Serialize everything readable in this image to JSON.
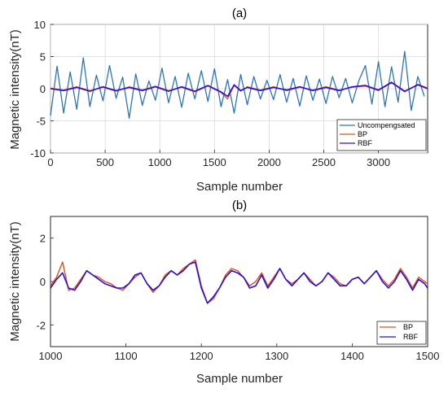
{
  "chart_data": [
    {
      "type": "line",
      "title": "(a)",
      "xlabel": "Sample number",
      "ylabel": "Magnetic intensity(nT)",
      "xlim": [
        0,
        3450
      ],
      "ylim": [
        -10,
        10
      ],
      "xticks": [
        0,
        500,
        1000,
        1500,
        2000,
        2500,
        3000
      ],
      "yticks": [
        10,
        5,
        0,
        -5,
        -10
      ],
      "grid": true,
      "legend_position": "bottom-right",
      "series": [
        {
          "name": "Uncompengsated",
          "color": "#2e75b6",
          "x": [
            0,
            60,
            120,
            180,
            240,
            300,
            360,
            420,
            480,
            540,
            600,
            660,
            720,
            780,
            840,
            900,
            960,
            1020,
            1080,
            1140,
            1200,
            1260,
            1320,
            1380,
            1440,
            1500,
            1560,
            1620,
            1680,
            1740,
            1800,
            1860,
            1920,
            1980,
            2040,
            2100,
            2160,
            2220,
            2280,
            2340,
            2400,
            2460,
            2520,
            2580,
            2640,
            2700,
            2760,
            2820,
            2880,
            2940,
            3000,
            3060,
            3120,
            3180,
            3240,
            3300,
            3360,
            3420
          ],
          "y": [
            -4.2,
            3.5,
            -3.8,
            2.6,
            -3.2,
            4.8,
            -2.8,
            2.1,
            -1.9,
            3.6,
            -1.5,
            1.8,
            -4.6,
            2.3,
            -2.6,
            1.2,
            -1.8,
            3.2,
            -2.2,
            1.9,
            -2.9,
            2.4,
            -1.6,
            2.8,
            -2.0,
            3.1,
            -2.8,
            1.4,
            -3.8,
            2.2,
            -2.5,
            1.9,
            -1.6,
            1.3,
            -1.7,
            2.2,
            -2.1,
            1.6,
            -2.7,
            2.0,
            -1.8,
            1.5,
            -2.3,
            1.9,
            -1.4,
            1.6,
            -2.2,
            1.2,
            3.6,
            -2.4,
            4.2,
            -2.8,
            3.4,
            -2.1,
            5.8,
            -3.4,
            1.9,
            -1.2
          ]
        },
        {
          "name": "BP",
          "color": "#d95319",
          "x": [
            0,
            120,
            240,
            360,
            480,
            600,
            720,
            840,
            960,
            1080,
            1200,
            1320,
            1440,
            1560,
            1620,
            1680,
            1740,
            1800,
            1920,
            2040,
            2160,
            2280,
            2400,
            2520,
            2640,
            2760,
            2880,
            3000,
            3120,
            3240,
            3360,
            3450
          ],
          "y": [
            0.1,
            -0.2,
            0.3,
            -0.3,
            0.2,
            -0.4,
            0.3,
            -0.2,
            0.4,
            -0.3,
            0.2,
            -0.5,
            0.4,
            -0.6,
            -1.6,
            0.5,
            -0.4,
            0.3,
            -0.2,
            0.3,
            -0.3,
            0.2,
            -0.2,
            0.3,
            -0.2,
            0.2,
            0.4,
            -0.3,
            0.9,
            -0.5,
            0.7,
            0.1
          ]
        },
        {
          "name": "RBF",
          "color": "#2b0fd4",
          "x": [
            0,
            120,
            240,
            360,
            480,
            600,
            720,
            840,
            960,
            1080,
            1200,
            1320,
            1440,
            1560,
            1620,
            1680,
            1740,
            1800,
            1920,
            2040,
            2160,
            2280,
            2400,
            2520,
            2640,
            2760,
            2880,
            3000,
            3120,
            3240,
            3360,
            3450
          ],
          "y": [
            0.0,
            -0.3,
            0.2,
            -0.4,
            0.3,
            -0.3,
            0.2,
            -0.3,
            0.3,
            -0.4,
            0.3,
            -0.4,
            0.5,
            -0.5,
            -1.2,
            0.6,
            -0.3,
            0.2,
            -0.3,
            0.2,
            -0.2,
            0.3,
            -0.3,
            0.2,
            -0.3,
            0.3,
            0.5,
            -0.2,
            1.0,
            -0.4,
            0.6,
            0.0
          ]
        }
      ]
    },
    {
      "type": "line",
      "title": "(b)",
      "xlabel": "Sample number",
      "ylabel": "Magnetic intensity(nT)",
      "xlim": [
        1000,
        1500
      ],
      "ylim": [
        -3,
        3
      ],
      "xticks": [
        1000,
        1100,
        1200,
        1300,
        1400,
        1500
      ],
      "yticks": [
        2,
        0,
        -2
      ],
      "grid": false,
      "legend_position": "bottom-right",
      "series": [
        {
          "name": "BP",
          "color": "#d95319",
          "x": [
            1000,
            1008,
            1016,
            1024,
            1032,
            1040,
            1048,
            1056,
            1064,
            1072,
            1080,
            1088,
            1096,
            1104,
            1112,
            1120,
            1128,
            1136,
            1144,
            1152,
            1160,
            1168,
            1176,
            1184,
            1192,
            1200,
            1208,
            1216,
            1224,
            1232,
            1240,
            1248,
            1256,
            1264,
            1272,
            1280,
            1288,
            1296,
            1304,
            1312,
            1320,
            1328,
            1336,
            1344,
            1352,
            1360,
            1368,
            1376,
            1384,
            1392,
            1400,
            1408,
            1416,
            1424,
            1432,
            1440,
            1448,
            1456,
            1464,
            1472,
            1480,
            1488,
            1496,
            1500
          ],
          "y": [
            -0.2,
            0.2,
            0.9,
            -0.4,
            -0.3,
            0.1,
            0.5,
            0.3,
            0.2,
            0.0,
            -0.1,
            -0.3,
            -0.4,
            -0.1,
            0.2,
            0.4,
            -0.1,
            -0.5,
            -0.2,
            0.3,
            0.5,
            0.3,
            0.6,
            0.8,
            1.0,
            -0.2,
            -1.0,
            -0.8,
            -0.3,
            0.3,
            0.6,
            0.5,
            0.2,
            -0.2,
            0.0,
            0.4,
            -0.2,
            0.2,
            0.6,
            0.1,
            -0.1,
            0.1,
            0.4,
            0.1,
            -0.2,
            0.0,
            0.4,
            0.2,
            -0.1,
            -0.2,
            0.1,
            0.2,
            -0.1,
            0.2,
            0.5,
            0.1,
            -0.2,
            0.1,
            0.6,
            0.2,
            -0.3,
            0.2,
            0.0,
            -0.1
          ]
        },
        {
          "name": "RBF",
          "color": "#2b0fd4",
          "x": [
            1000,
            1008,
            1016,
            1024,
            1032,
            1040,
            1048,
            1056,
            1064,
            1072,
            1080,
            1088,
            1096,
            1104,
            1112,
            1120,
            1128,
            1136,
            1144,
            1152,
            1160,
            1168,
            1176,
            1184,
            1192,
            1200,
            1208,
            1216,
            1224,
            1232,
            1240,
            1248,
            1256,
            1264,
            1272,
            1280,
            1288,
            1296,
            1304,
            1312,
            1320,
            1328,
            1336,
            1344,
            1352,
            1360,
            1368,
            1376,
            1384,
            1392,
            1400,
            1408,
            1416,
            1424,
            1432,
            1440,
            1448,
            1456,
            1464,
            1472,
            1480,
            1488,
            1496,
            1500
          ],
          "y": [
            -0.3,
            0.1,
            0.4,
            -0.3,
            -0.4,
            0.0,
            0.5,
            0.3,
            0.1,
            -0.1,
            -0.2,
            -0.3,
            -0.3,
            -0.1,
            0.3,
            0.4,
            -0.1,
            -0.4,
            -0.2,
            0.2,
            0.5,
            0.3,
            0.5,
            0.8,
            0.9,
            -0.3,
            -1.0,
            -0.7,
            -0.3,
            0.2,
            0.5,
            0.4,
            0.2,
            -0.3,
            -0.2,
            0.3,
            -0.3,
            0.1,
            0.6,
            0.1,
            -0.2,
            0.1,
            0.4,
            0.0,
            -0.2,
            0.0,
            0.4,
            0.1,
            -0.2,
            -0.2,
            0.1,
            0.2,
            -0.1,
            0.2,
            0.5,
            0.0,
            -0.3,
            0.0,
            0.5,
            0.1,
            -0.4,
            0.1,
            -0.1,
            -0.3
          ]
        }
      ]
    }
  ]
}
